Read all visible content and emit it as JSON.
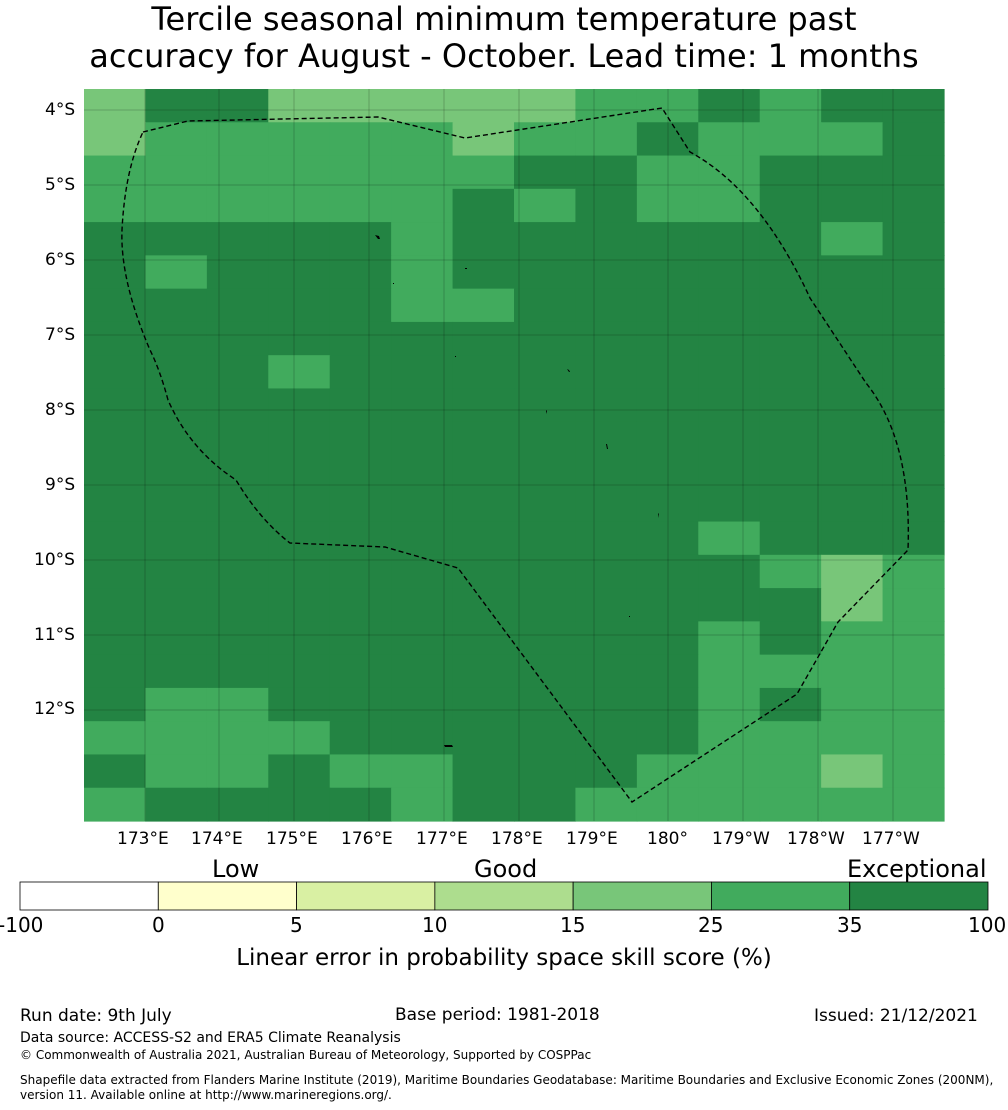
{
  "title": {
    "line1": "Tercile seasonal minimum temperature past",
    "line2": "accuracy for August - October. Lead time: 1 months"
  },
  "map": {
    "lat_labels": [
      "4°S",
      "5°S",
      "6°S",
      "7°S",
      "8°S",
      "9°S",
      "10°S",
      "11°S",
      "12°S"
    ],
    "lon_labels": [
      "173°E",
      "174°E",
      "175°E",
      "176°E",
      "177°E",
      "178°E",
      "179°E",
      "180°",
      "179°W",
      "178°W",
      "177°W"
    ],
    "grid": [
      "44466555644666",
      "44444544544465",
      "55556655655665",
      "55556666554666",
      "55555666666665",
      "56666566666666",
      "66666666666666",
      "66666666666666",
      "66666666666666",
      "66666666666666",
      "66666666666666",
      "66666666666666",
      "66666666666666",
      "66666666665665",
      "66666666666544",
      "66666666666644",
      "66666666666665",
      "66666666666565",
      "65555666666555",
      "55555555666555",
      "55556566666655",
      "56666566666655"
    ],
    "overrides": [
      {
        "r": 0,
        "c": 0,
        "v": 4
      },
      {
        "r": 0,
        "c": 1,
        "v": 6
      },
      {
        "r": 0,
        "c": 2,
        "v": 6
      },
      {
        "r": 0,
        "c": 3,
        "v": 4
      },
      {
        "r": 0,
        "c": 4,
        "v": 4
      },
      {
        "r": 0,
        "c": 5,
        "v": 4
      },
      {
        "r": 0,
        "c": 6,
        "v": 4
      },
      {
        "r": 0,
        "c": 7,
        "v": 4
      },
      {
        "r": 0,
        "c": 8,
        "v": 5
      },
      {
        "r": 0,
        "c": 9,
        "v": 5
      },
      {
        "r": 0,
        "c": 10,
        "v": 6
      },
      {
        "r": 0,
        "c": 11,
        "v": 5
      },
      {
        "r": 0,
        "c": 12,
        "v": 6
      },
      {
        "r": 0,
        "c": 13,
        "v": 6
      },
      {
        "r": 1,
        "c": 0,
        "v": 4
      },
      {
        "r": 1,
        "c": 1,
        "v": 5
      },
      {
        "r": 1,
        "c": 2,
        "v": 5
      },
      {
        "r": 1,
        "c": 3,
        "v": 5
      },
      {
        "r": 1,
        "c": 4,
        "v": 5
      },
      {
        "r": 1,
        "c": 5,
        "v": 5
      },
      {
        "r": 1,
        "c": 6,
        "v": 4
      },
      {
        "r": 1,
        "c": 7,
        "v": 5
      },
      {
        "r": 1,
        "c": 8,
        "v": 5
      },
      {
        "r": 1,
        "c": 9,
        "v": 6
      },
      {
        "r": 1,
        "c": 10,
        "v": 5
      },
      {
        "r": 1,
        "c": 11,
        "v": 5
      },
      {
        "r": 1,
        "c": 12,
        "v": 5
      },
      {
        "r": 1,
        "c": 13,
        "v": 6
      },
      {
        "r": 2,
        "c": 0,
        "v": 5
      },
      {
        "r": 2,
        "c": 1,
        "v": 5
      },
      {
        "r": 2,
        "c": 2,
        "v": 5
      },
      {
        "r": 2,
        "c": 3,
        "v": 5
      },
      {
        "r": 2,
        "c": 4,
        "v": 5
      },
      {
        "r": 2,
        "c": 5,
        "v": 5
      },
      {
        "r": 2,
        "c": 6,
        "v": 5
      },
      {
        "r": 2,
        "c": 7,
        "v": 6
      },
      {
        "r": 2,
        "c": 8,
        "v": 6
      },
      {
        "r": 2,
        "c": 9,
        "v": 5
      },
      {
        "r": 2,
        "c": 10,
        "v": 5
      },
      {
        "r": 2,
        "c": 11,
        "v": 6
      },
      {
        "r": 2,
        "c": 12,
        "v": 6
      },
      {
        "r": 2,
        "c": 13,
        "v": 6
      },
      {
        "r": 3,
        "c": 0,
        "v": 5
      },
      {
        "r": 3,
        "c": 1,
        "v": 5
      },
      {
        "r": 3,
        "c": 2,
        "v": 5
      },
      {
        "r": 3,
        "c": 3,
        "v": 5
      },
      {
        "r": 3,
        "c": 4,
        "v": 5
      },
      {
        "r": 3,
        "c": 5,
        "v": 5
      },
      {
        "r": 3,
        "c": 6,
        "v": 6
      },
      {
        "r": 3,
        "c": 7,
        "v": 5
      },
      {
        "r": 3,
        "c": 8,
        "v": 6
      },
      {
        "r": 3,
        "c": 9,
        "v": 5
      },
      {
        "r": 3,
        "c": 10,
        "v": 5
      },
      {
        "r": 3,
        "c": 11,
        "v": 6
      },
      {
        "r": 3,
        "c": 12,
        "v": 6
      },
      {
        "r": 3,
        "c": 13,
        "v": 6
      },
      {
        "r": 4,
        "c": 0,
        "v": 6
      },
      {
        "r": 4,
        "c": 1,
        "v": 6
      },
      {
        "r": 4,
        "c": 2,
        "v": 6
      },
      {
        "r": 4,
        "c": 3,
        "v": 6
      },
      {
        "r": 4,
        "c": 4,
        "v": 6
      },
      {
        "r": 4,
        "c": 5,
        "v": 5
      },
      {
        "r": 4,
        "c": 6,
        "v": 6
      },
      {
        "r": 4,
        "c": 7,
        "v": 6
      },
      {
        "r": 4,
        "c": 8,
        "v": 6
      },
      {
        "r": 4,
        "c": 9,
        "v": 6
      },
      {
        "r": 4,
        "c": 10,
        "v": 6
      },
      {
        "r": 4,
        "c": 11,
        "v": 6
      },
      {
        "r": 4,
        "c": 12,
        "v": 5
      },
      {
        "r": 4,
        "c": 13,
        "v": 6
      },
      {
        "r": 5,
        "c": 0,
        "v": 6
      },
      {
        "r": 5,
        "c": 1,
        "v": 5
      },
      {
        "r": 5,
        "c": 2,
        "v": 6
      },
      {
        "r": 5,
        "c": 3,
        "v": 6
      },
      {
        "r": 5,
        "c": 4,
        "v": 6
      },
      {
        "r": 5,
        "c": 5,
        "v": 5
      },
      {
        "r": 5,
        "c": 6,
        "v": 6
      },
      {
        "r": 5,
        "c": 7,
        "v": 6
      },
      {
        "r": 5,
        "c": 8,
        "v": 6
      },
      {
        "r": 5,
        "c": 9,
        "v": 6
      },
      {
        "r": 5,
        "c": 10,
        "v": 6
      },
      {
        "r": 5,
        "c": 11,
        "v": 6
      },
      {
        "r": 5,
        "c": 12,
        "v": 6
      },
      {
        "r": 5,
        "c": 13,
        "v": 6
      },
      {
        "r": 6,
        "c": 5,
        "v": 5
      },
      {
        "r": 6,
        "c": 6,
        "v": 5
      },
      {
        "r": 8,
        "c": 3,
        "v": 5
      },
      {
        "r": 13,
        "c": 10,
        "v": 5
      },
      {
        "r": 13,
        "c": 12,
        "v": 6
      },
      {
        "r": 13,
        "c": 13,
        "v": 6
      },
      {
        "r": 14,
        "c": 11,
        "v": 5
      },
      {
        "r": 14,
        "c": 12,
        "v": 4
      },
      {
        "r": 14,
        "c": 13,
        "v": 5
      },
      {
        "r": 15,
        "c": 12,
        "v": 4
      },
      {
        "r": 15,
        "c": 13,
        "v": 5
      },
      {
        "r": 16,
        "c": 10,
        "v": 5
      },
      {
        "r": 16,
        "c": 12,
        "v": 5
      },
      {
        "r": 16,
        "c": 13,
        "v": 5
      },
      {
        "r": 17,
        "c": 10,
        "v": 5
      },
      {
        "r": 17,
        "c": 12,
        "v": 5
      },
      {
        "r": 17,
        "c": 13,
        "v": 5
      },
      {
        "r": 18,
        "c": 0,
        "v": 6
      },
      {
        "r": 18,
        "c": 1,
        "v": 5
      },
      {
        "r": 18,
        "c": 2,
        "v": 5
      },
      {
        "r": 18,
        "c": 3,
        "v": 6
      },
      {
        "r": 18,
        "c": 4,
        "v": 6
      },
      {
        "r": 18,
        "c": 10,
        "v": 5
      },
      {
        "r": 18,
        "c": 11,
        "v": 6
      },
      {
        "r": 18,
        "c": 12,
        "v": 5
      },
      {
        "r": 18,
        "c": 13,
        "v": 5
      },
      {
        "r": 19,
        "c": 0,
        "v": 5
      },
      {
        "r": 19,
        "c": 1,
        "v": 5
      },
      {
        "r": 19,
        "c": 2,
        "v": 5
      },
      {
        "r": 19,
        "c": 3,
        "v": 5
      },
      {
        "r": 19,
        "c": 4,
        "v": 6
      },
      {
        "r": 19,
        "c": 5,
        "v": 6
      },
      {
        "r": 19,
        "c": 6,
        "v": 6
      },
      {
        "r": 19,
        "c": 7,
        "v": 6
      },
      {
        "r": 19,
        "c": 10,
        "v": 5
      },
      {
        "r": 19,
        "c": 11,
        "v": 5
      },
      {
        "r": 19,
        "c": 12,
        "v": 5
      },
      {
        "r": 19,
        "c": 13,
        "v": 5
      },
      {
        "r": 20,
        "c": 0,
        "v": 6
      },
      {
        "r": 20,
        "c": 1,
        "v": 5
      },
      {
        "r": 20,
        "c": 2,
        "v": 5
      },
      {
        "r": 20,
        "c": 3,
        "v": 6
      },
      {
        "r": 20,
        "c": 4,
        "v": 5
      },
      {
        "r": 20,
        "c": 9,
        "v": 5
      },
      {
        "r": 20,
        "c": 10,
        "v": 5
      },
      {
        "r": 20,
        "c": 11,
        "v": 5
      },
      {
        "r": 20,
        "c": 12,
        "v": 4
      },
      {
        "r": 20,
        "c": 13,
        "v": 5
      },
      {
        "r": 21,
        "c": 0,
        "v": 5
      },
      {
        "r": 21,
        "c": 1,
        "v": 6
      },
      {
        "r": 21,
        "c": 2,
        "v": 6
      },
      {
        "r": 21,
        "c": 3,
        "v": 6
      },
      {
        "r": 21,
        "c": 4,
        "v": 6
      },
      {
        "r": 21,
        "c": 6,
        "v": 6
      },
      {
        "r": 21,
        "c": 7,
        "v": 6
      },
      {
        "r": 21,
        "c": 8,
        "v": 5
      },
      {
        "r": 21,
        "c": 9,
        "v": 5
      },
      {
        "r": 21,
        "c": 10,
        "v": 5
      },
      {
        "r": 21,
        "c": 11,
        "v": 5
      },
      {
        "r": 21,
        "c": 12,
        "v": 5
      },
      {
        "r": 21,
        "c": 13,
        "v": 5
      }
    ]
  },
  "colorbar": {
    "categories": [
      "Low",
      "Good",
      "Exceptional"
    ],
    "ticks": [
      "-100",
      "0",
      "5",
      "10",
      "15",
      "25",
      "35",
      "100"
    ],
    "colors": [
      "#ffffff",
      "#ffffcc",
      "#d9f0a3",
      "#addd8e",
      "#78c679",
      "#41ab5d",
      "#238443"
    ],
    "title": "Linear error in probability space skill score (%)"
  },
  "footer": {
    "run_date": "Run date: 9th July",
    "base_period": "Base period: 1981-2018",
    "issued": "Issued: 21/12/2021",
    "data_source": "Data source: ACCESS-S2 and ERA5 Climate Reanalysis",
    "copyright": "© Commonwealth of Australia 2021, Australian Bureau of Meteorology, Supported by COSPPac",
    "shapefile_1": "Shapefile data extracted from Flanders Marine Institute (2019), Maritime Boundaries Geodatabase: Maritime Boundaries and Exclusive Economic Zones (200NM),",
    "shapefile_2": "version 11. Available online at http://www.marineregions.org/."
  }
}
